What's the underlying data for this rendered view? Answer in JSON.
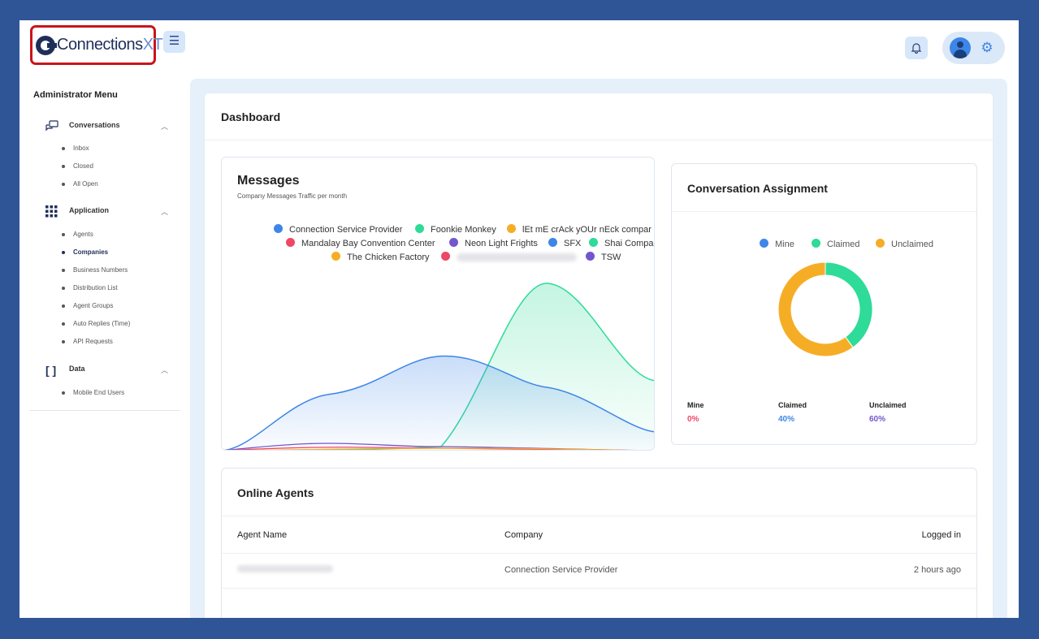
{
  "brand": {
    "logo_main": "Connections",
    "logo_accent": "XT"
  },
  "sidebar": {
    "title": "Administrator Menu",
    "sections": [
      {
        "label": "Conversations",
        "items": [
          "Inbox",
          "Closed",
          "All Open"
        ]
      },
      {
        "label": "Application",
        "items": [
          "Agents",
          "Companies",
          "Business Numbers",
          "Distribution List",
          "Agent Groups",
          "Auto Replies (Time)",
          "API Requests"
        ]
      },
      {
        "label": "Data",
        "items": [
          "Mobile End Users"
        ]
      }
    ],
    "active_item": "Companies"
  },
  "dashboard": {
    "title": "Dashboard"
  },
  "messages_chart": {
    "title": "Messages",
    "subtitle": "Company Messages Traffic per month",
    "legend": [
      {
        "name": "Connection Service Provider",
        "color": "#3d86e8"
      },
      {
        "name": "Foonkie Monkey",
        "color": "#2edb98"
      },
      {
        "name": "lEt mE crAck yOUr nEck compar",
        "color": "#f6ad26"
      },
      {
        "name": "Mandalay Bay Convention Center",
        "color": "#ef4766"
      },
      {
        "name": "Neon Light Frights",
        "color": "#7356cd"
      },
      {
        "name": "SFX",
        "color": "#3d86e8"
      },
      {
        "name": "Shai Compa",
        "color": "#2edb98"
      },
      {
        "name": "The Chicken Factory",
        "color": "#f6ad26"
      },
      {
        "name": "",
        "color": "#ef4766"
      },
      {
        "name": "TSW",
        "color": "#7356cd"
      }
    ]
  },
  "conversation_assignment": {
    "title": "Conversation Assignment",
    "legend": [
      {
        "name": "Mine",
        "color": "#3d86e8"
      },
      {
        "name": "Claimed",
        "color": "#2edb98"
      },
      {
        "name": "Unclaimed",
        "color": "#f6ad26"
      }
    ],
    "stats": [
      {
        "label": "Mine",
        "value": "0%",
        "color": "#ef4766"
      },
      {
        "label": "Claimed",
        "value": "40%",
        "color": "#3d86e8"
      },
      {
        "label": "Unclaimed",
        "value": "60%",
        "color": "#7356cd"
      }
    ],
    "donut": [
      {
        "name": "Claimed",
        "fraction": 0.4,
        "color": "#2edb98"
      },
      {
        "name": "Unclaimed",
        "fraction": 0.6,
        "color": "#f6ad26"
      }
    ]
  },
  "online_agents": {
    "title": "Online Agents",
    "columns": [
      "Agent Name",
      "Company",
      "Logged in"
    ],
    "rows": [
      {
        "agent": "",
        "company": "Connection Service Provider",
        "logged_in": "2 hours ago"
      }
    ]
  }
}
